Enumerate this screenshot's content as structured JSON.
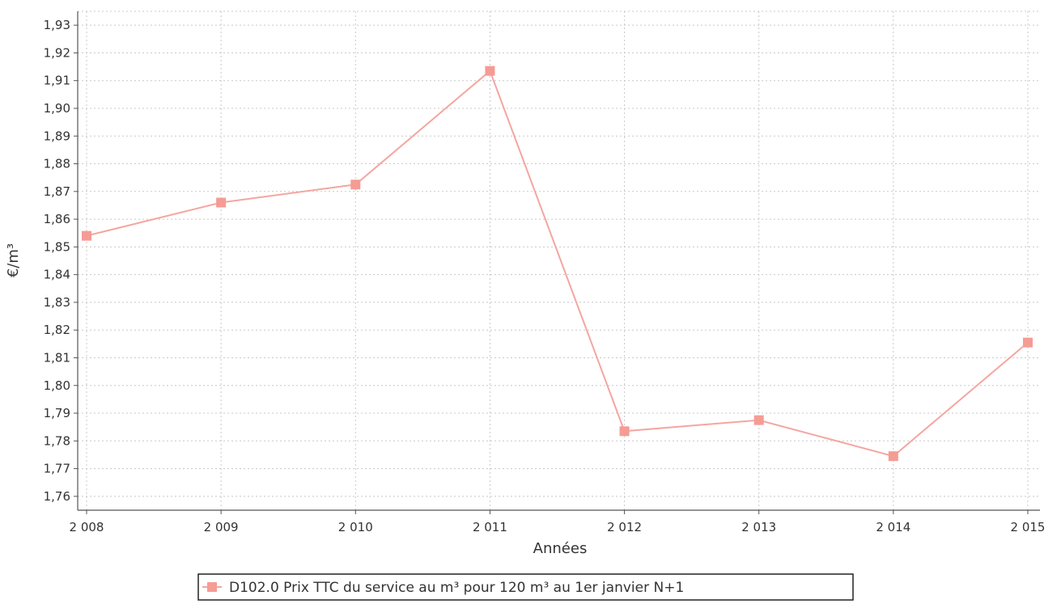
{
  "chart_data": {
    "type": "line",
    "title": "",
    "xlabel": "Années",
    "ylabel": "€/m³",
    "x": [
      "2 008",
      "2 009",
      "2 010",
      "2 011",
      "2 012",
      "2 013",
      "2 014",
      "2 015"
    ],
    "series": [
      {
        "name": "D102.0 Prix TTC du service au m³ pour 120 m³ au 1er janvier N+1",
        "values": [
          1.854,
          1.866,
          1.8725,
          1.9135,
          1.7835,
          1.7875,
          1.7745,
          1.8155
        ],
        "color": "#f4a6a0",
        "marker_color": "#f59c94"
      }
    ],
    "ylim": [
      1.755,
      1.935
    ],
    "y_ticks": [
      "1,76",
      "1,77",
      "1,78",
      "1,79",
      "1,80",
      "1,81",
      "1,82",
      "1,83",
      "1,84",
      "1,85",
      "1,86",
      "1,87",
      "1,88",
      "1,89",
      "1,90",
      "1,91",
      "1,92",
      "1,93"
    ],
    "y_tick_values": [
      1.76,
      1.77,
      1.78,
      1.79,
      1.8,
      1.81,
      1.82,
      1.83,
      1.84,
      1.85,
      1.86,
      1.87,
      1.88,
      1.89,
      1.9,
      1.91,
      1.92,
      1.93
    ],
    "grid": true,
    "legend_position": "bottom-center",
    "colors": {
      "grid": "#c8c8c8",
      "axis": "#555555",
      "legend_border": "#222222"
    }
  }
}
